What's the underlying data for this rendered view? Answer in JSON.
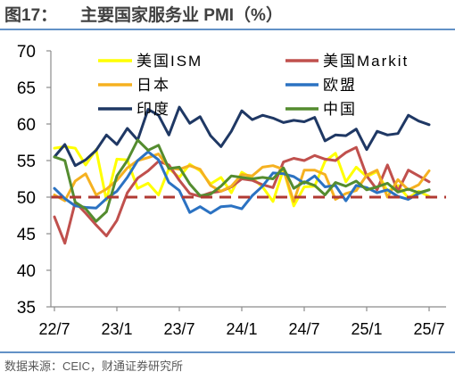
{
  "chart_data": {
    "type": "line",
    "figure_label": "图17：",
    "title": "主要国家服务业 PMI（%）",
    "x": [
      "22/7",
      "22/8",
      "22/9",
      "22/10",
      "22/11",
      "22/12",
      "23/1",
      "23/2",
      "23/3",
      "23/4",
      "23/5",
      "23/6",
      "23/7",
      "23/8",
      "23/9",
      "23/10",
      "23/11",
      "23/12",
      "24/1",
      "24/2",
      "24/3",
      "24/4",
      "24/5",
      "24/6",
      "24/7",
      "24/8",
      "24/9",
      "24/10",
      "24/11",
      "24/12",
      "25/1",
      "25/2",
      "25/3",
      "25/4",
      "25/5",
      "25/6",
      "25/7"
    ],
    "xticks": [
      "22/7",
      "23/1",
      "23/7",
      "24/1",
      "24/7",
      "25/1",
      "25/7"
    ],
    "ylim": [
      35,
      70
    ],
    "yticks": [
      70,
      65,
      60,
      55,
      50,
      45,
      40,
      35
    ],
    "grid": false,
    "legend_position": "top",
    "reference_line": {
      "y": 50,
      "color": "#B03A33"
    },
    "series": [
      {
        "name": "美国ISM",
        "color": "#FFFF00",
        "values": [
          56.7,
          56.9,
          56.7,
          54.4,
          56.5,
          49.6,
          55.2,
          55.1,
          51.2,
          51.9,
          50.3,
          53.9,
          52.7,
          54.5,
          53.6,
          51.8,
          52.7,
          50.6,
          53.4,
          52.6,
          51.4,
          49.4,
          53.8,
          48.8,
          51.4,
          51.5,
          54.9,
          56.0,
          52.1,
          54.1,
          52.8,
          53.5,
          50.8,
          51.6,
          49.9,
          50.8,
          50.1
        ]
      },
      {
        "name": "美国Markit",
        "color": "#C0504D",
        "values": [
          47.3,
          43.7,
          49.3,
          47.8,
          46.2,
          44.7,
          46.8,
          50.6,
          52.6,
          53.6,
          54.9,
          54.4,
          52.3,
          50.5,
          50.1,
          50.6,
          50.8,
          51.4,
          52.5,
          52.3,
          51.7,
          51.3,
          54.8,
          55.3,
          55.0,
          55.7,
          55.2,
          55.0,
          56.1,
          56.8,
          52.9,
          51.0,
          54.4,
          50.8,
          53.7,
          52.9,
          52.1
        ]
      },
      {
        "name": "日本",
        "color": "#F5B120",
        "values": [
          50.3,
          49.5,
          52.2,
          53.2,
          50.3,
          51.1,
          52.3,
          54.0,
          55.0,
          55.4,
          55.9,
          54.0,
          53.8,
          54.3,
          53.8,
          51.6,
          50.8,
          51.5,
          53.1,
          52.9,
          54.1,
          54.3,
          53.8,
          49.4,
          53.7,
          53.7,
          53.1,
          49.7,
          50.5,
          50.9,
          53.0,
          53.7,
          50.0,
          52.4,
          51.0,
          51.7,
          53.6
        ]
      },
      {
        "name": "欧盟",
        "color": "#2B72C2",
        "values": [
          51.2,
          49.8,
          48.8,
          48.6,
          48.5,
          49.8,
          50.8,
          52.7,
          55.0,
          56.2,
          55.1,
          52.0,
          50.9,
          47.9,
          48.7,
          47.8,
          48.7,
          48.8,
          48.4,
          50.2,
          51.5,
          53.3,
          53.2,
          52.8,
          51.9,
          52.9,
          51.4,
          51.6,
          49.5,
          51.6,
          51.3,
          50.6,
          51.0,
          50.1,
          49.7,
          50.5,
          51.0
        ]
      },
      {
        "name": "印度",
        "color": "#1F3864",
        "values": [
          55.5,
          57.2,
          54.3,
          55.1,
          56.4,
          58.5,
          57.2,
          59.4,
          57.8,
          62.0,
          61.2,
          58.5,
          62.3,
          60.1,
          61.0,
          58.4,
          56.9,
          59.0,
          61.8,
          60.6,
          61.2,
          60.8,
          60.2,
          60.5,
          60.3,
          60.9,
          57.7,
          58.5,
          58.4,
          59.3,
          56.5,
          59.0,
          58.5,
          58.7,
          61.2,
          60.4,
          59.9
        ]
      },
      {
        "name": "中国",
        "color": "#548C2F",
        "values": [
          55.5,
          55.0,
          49.3,
          48.4,
          46.7,
          48.0,
          52.9,
          55.0,
          57.8,
          56.4,
          57.1,
          53.9,
          54.1,
          51.8,
          50.2,
          50.4,
          51.5,
          52.9,
          52.7,
          52.5,
          52.7,
          52.5,
          54.0,
          51.2,
          52.1,
          51.6,
          50.3,
          52.0,
          51.5,
          52.2,
          51.0,
          51.4,
          51.9,
          50.7,
          51.1,
          50.6,
          51.0
        ]
      }
    ]
  },
  "source": "数据来源：CEIC，财通证券研究所"
}
